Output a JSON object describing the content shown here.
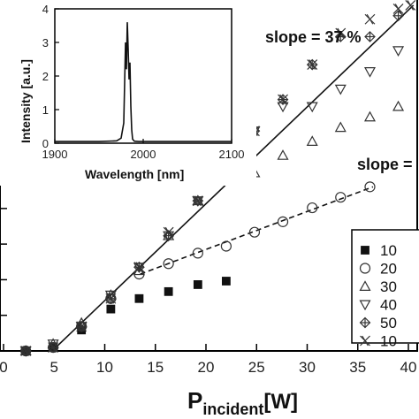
{
  "chart_data": {
    "type": "scatter",
    "xlabel_main": "P",
    "xlabel_sub": "incident",
    "xlabel_unit": "[W]",
    "x_ticks": [
      "0",
      "5",
      "10",
      "15",
      "20",
      "25",
      "30",
      "35",
      "40"
    ],
    "xlim": [
      0,
      40
    ],
    "ylim": [
      0,
      1.0
    ],
    "annotations": [
      "slope = 37 %",
      "slope ="
    ],
    "fit_lines": [
      {
        "style": "solid",
        "points": [
          [
            4.8,
            0.0
          ],
          [
            40.5,
            0.99
          ]
        ]
      },
      {
        "style": "dashed",
        "points": [
          [
            13.5,
            0.22
          ],
          [
            36.5,
            0.47
          ]
        ]
      }
    ],
    "series": [
      {
        "name": "10",
        "marker": "filled-square",
        "x": [
          2.2,
          4.9,
          7.7,
          10.6,
          13.4,
          16.3,
          19.2,
          22.0
        ],
        "y": [
          0.0,
          0.01,
          0.06,
          0.12,
          0.15,
          0.17,
          0.19,
          0.2
        ]
      },
      {
        "name": "20",
        "marker": "circle",
        "x": [
          2.2,
          4.9,
          7.7,
          10.6,
          13.4,
          16.3,
          19.2,
          22.0,
          24.8,
          27.6,
          30.5,
          33.3,
          36.2
        ],
        "y": [
          0.0,
          0.01,
          0.07,
          0.15,
          0.22,
          0.25,
          0.28,
          0.3,
          0.34,
          0.37,
          0.41,
          0.44,
          0.47
        ]
      },
      {
        "name": "30",
        "marker": "triangle-up",
        "x": [
          2.2,
          4.9,
          7.7,
          10.6,
          13.4,
          16.3,
          19.2,
          22.0,
          24.8,
          27.6,
          30.5,
          33.3,
          36.2,
          39.0
        ],
        "y": [
          0.0,
          0.02,
          0.08,
          0.16,
          0.23,
          0.33,
          0.43,
          0.54,
          0.51,
          0.56,
          0.6,
          0.64,
          0.67,
          0.7
        ]
      },
      {
        "name": "40",
        "marker": "triangle-down",
        "x": [
          2.2,
          4.9,
          7.7,
          10.6,
          13.4,
          16.3,
          19.2,
          22.0,
          24.8,
          27.6,
          30.5,
          33.3,
          36.2,
          39.0
        ],
        "y": [
          0.0,
          0.02,
          0.07,
          0.16,
          0.24,
          0.33,
          0.43,
          0.53,
          0.63,
          0.7,
          0.7,
          0.75,
          0.8,
          0.86
        ]
      },
      {
        "name": "50",
        "marker": "diamond-cross",
        "x": [
          2.2,
          4.9,
          7.7,
          10.6,
          13.4,
          16.3,
          19.2,
          22.0,
          24.8,
          27.6,
          30.5,
          33.3,
          36.2,
          39.0
        ],
        "y": [
          0.0,
          0.01,
          0.07,
          0.15,
          0.24,
          0.33,
          0.43,
          0.53,
          0.63,
          0.72,
          0.82,
          0.9,
          0.9,
          0.96
        ]
      },
      {
        "name": "10",
        "marker": "x-star",
        "x": [
          2.2,
          4.9,
          7.7,
          10.6,
          13.4,
          16.3,
          19.2,
          22.0,
          24.8,
          27.6,
          30.5,
          33.3,
          36.2,
          39.0,
          40.2
        ],
        "y": [
          0.0,
          0.01,
          0.07,
          0.15,
          0.24,
          0.34,
          0.43,
          0.53,
          0.63,
          0.72,
          0.82,
          0.91,
          0.95,
          0.98,
          0.99
        ]
      }
    ],
    "inset": {
      "type": "line",
      "xlabel": "Wavelength [nm]",
      "ylabel": "Intensity [a.u.]",
      "x_ticks": [
        "1900",
        "2000",
        "2100"
      ],
      "y_ticks": [
        "0",
        "1",
        "2",
        "3",
        "4"
      ],
      "xlim": [
        1900,
        2100
      ],
      "ylim": [
        0,
        4
      ],
      "x": [
        1900,
        1950,
        1970,
        1975,
        1978,
        1979,
        1980,
        1981,
        1982,
        1983,
        1984,
        1985,
        1986,
        1987,
        1988,
        1990,
        1995,
        2000,
        2050,
        2100
      ],
      "y": [
        0.05,
        0.05,
        0.07,
        0.15,
        0.6,
        1.8,
        3.0,
        2.2,
        3.6,
        2.8,
        1.9,
        2.4,
        1.1,
        0.4,
        0.12,
        0.06,
        0.05,
        0.05,
        0.05,
        0.05
      ]
    }
  }
}
